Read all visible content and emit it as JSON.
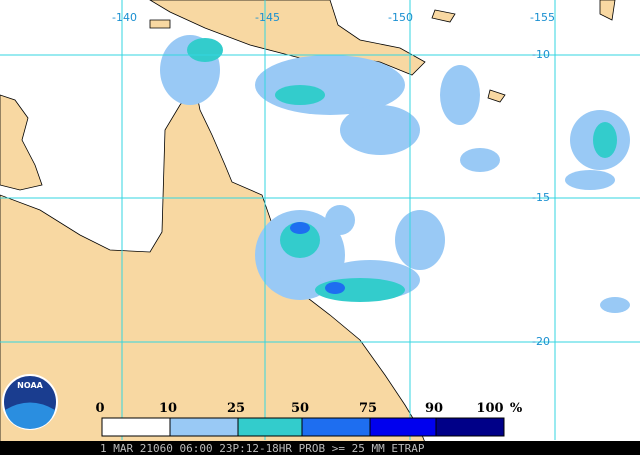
{
  "map": {
    "longitude_labels": [
      -140,
      -145,
      -150,
      -155
    ],
    "latitude_labels": [
      -10,
      -15,
      -20
    ]
  },
  "legend": {
    "labels": [
      0,
      10,
      25,
      50,
      75,
      90,
      100
    ],
    "unit": "%"
  },
  "footer": "1 MAR 21060 06:00 23P:12-18HR PROB >= 25 MM ETRAP",
  "logo": "NOAA"
}
